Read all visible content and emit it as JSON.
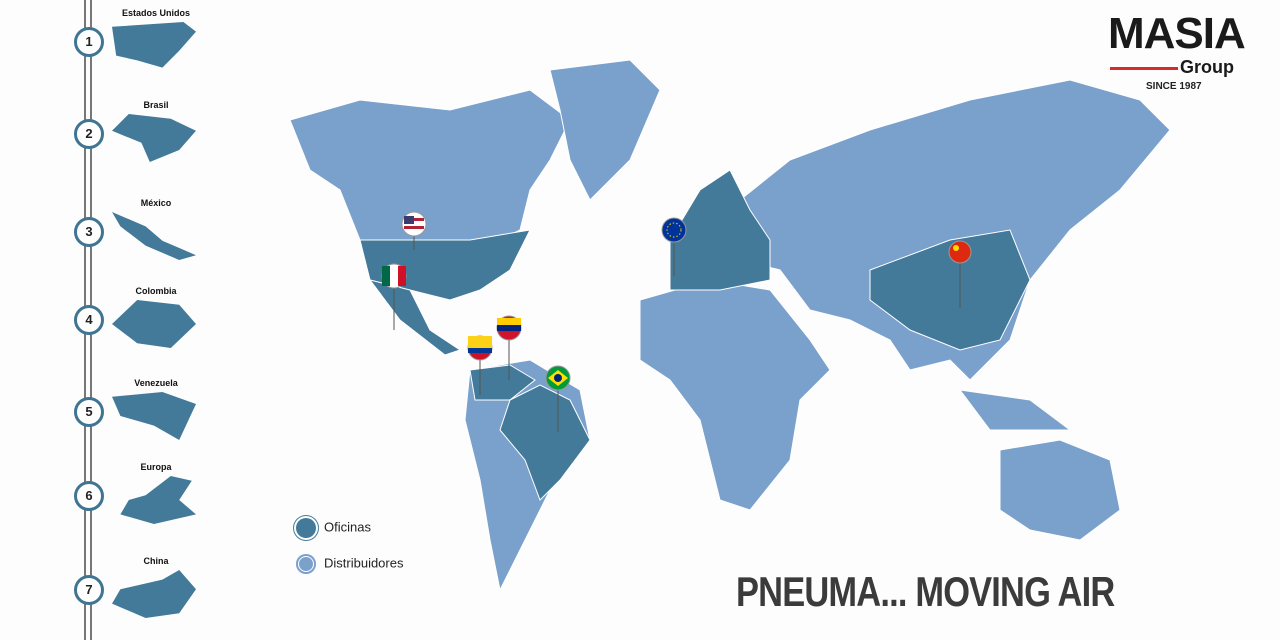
{
  "timeline": [
    {
      "num": "1",
      "label": "Estados Unidos"
    },
    {
      "num": "2",
      "label": "Brasil"
    },
    {
      "num": "3",
      "label": "México"
    },
    {
      "num": "4",
      "label": "Colombia"
    },
    {
      "num": "5",
      "label": "Venezuela"
    },
    {
      "num": "6",
      "label": "Europa"
    },
    {
      "num": "7",
      "label": "China"
    }
  ],
  "logo": {
    "name": "MASIA",
    "sub": "Group",
    "since": "SINCE 1987"
  },
  "legend": {
    "offices": "Oficinas",
    "distributors": "Distribuidores"
  },
  "tagline": "PNEUMA... MOVING AIR",
  "colors": {
    "offices": "#437a99",
    "distributors": "#7aa1cc",
    "accent": "#d62b2b"
  },
  "pins": [
    "usa-flag",
    "mexico-flag",
    "venezuela-flag",
    "colombia-flag",
    "brazil-flag",
    "eu-flag",
    "china-flag"
  ]
}
